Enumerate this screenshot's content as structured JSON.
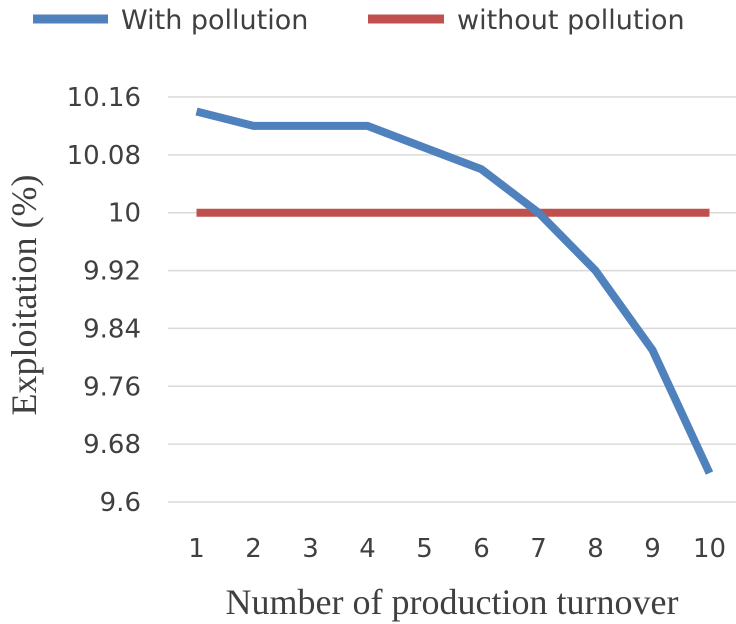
{
  "chart_data": {
    "type": "line",
    "xlabel": "Number of production turnover",
    "ylabel": "Exploitation (%)",
    "categories": [
      "1",
      "2",
      "3",
      "4",
      "5",
      "6",
      "7",
      "8",
      "9",
      "10"
    ],
    "x": [
      1,
      2,
      3,
      4,
      5,
      6,
      7,
      8,
      9,
      10
    ],
    "ylim": [
      9.6,
      10.16
    ],
    "yticks": [
      "9.6",
      "9.68",
      "9.76",
      "9.84",
      "9.92",
      "10",
      "10.08",
      "10.16"
    ],
    "grid": true,
    "legend_position": "top",
    "series": [
      {
        "name": "With pollution",
        "color": "#4f81bd",
        "values": [
          10.14,
          10.12,
          10.12,
          10.12,
          10.09,
          10.06,
          10.0,
          9.92,
          9.81,
          9.64
        ]
      },
      {
        "name": "without pollution",
        "color": "#c0504d",
        "values": [
          10.0,
          10.0,
          10.0,
          10.0,
          10.0,
          10.0,
          10.0,
          10.0,
          10.0,
          10.0
        ]
      }
    ]
  }
}
